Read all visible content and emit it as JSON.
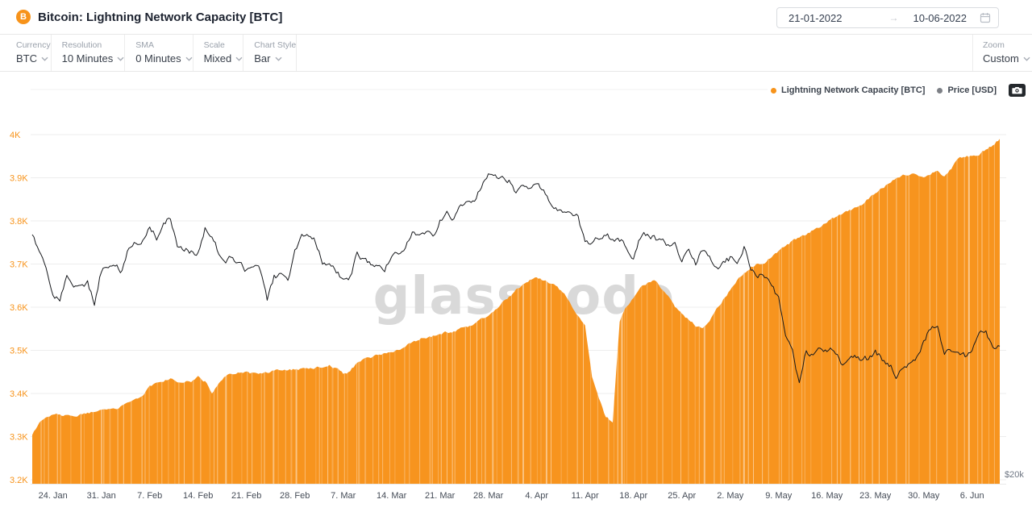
{
  "header": {
    "asset_icon_letter": "B",
    "title": "Bitcoin: Lightning Network Capacity [BTC]",
    "date_from": "21-01-2022",
    "date_to": "10-06-2022",
    "date_separator": "→"
  },
  "toolbar": {
    "cells": [
      {
        "label": "Currency",
        "value": "BTC"
      },
      {
        "label": "Resolution",
        "value": "10 Minutes"
      },
      {
        "label": "SMA",
        "value": "0 Minutes"
      },
      {
        "label": "Scale",
        "value": "Mixed"
      },
      {
        "label": "Chart Style",
        "value": "Bar"
      }
    ],
    "zoom": {
      "label": "Zoom",
      "value": "Custom"
    }
  },
  "legend": {
    "series": [
      {
        "label": "Lightning Network Capacity [BTC]",
        "color": "#f7931a"
      },
      {
        "label": "Price [USD]",
        "color": "#7d8086"
      }
    ]
  },
  "chart_data": {
    "type": "combo",
    "title": "Bitcoin: Lightning Network Capacity [BTC]",
    "start_date": "2022-01-21",
    "end_date": "2022-06-10",
    "x_tick_labels": [
      "24. Jan",
      "31. Jan",
      "7. Feb",
      "14. Feb",
      "21. Feb",
      "28. Feb",
      "7. Mar",
      "14. Mar",
      "21. Mar",
      "28. Mar",
      "4. Apr",
      "11. Apr",
      "18. Apr",
      "25. Apr",
      "2. May",
      "9. May",
      "16. May",
      "23. May",
      "30. May",
      "6. Jun"
    ],
    "x_tick_day_offsets": [
      3,
      10,
      17,
      24,
      31,
      38,
      45,
      52,
      59,
      66,
      73,
      80,
      87,
      94,
      101,
      108,
      115,
      122,
      129,
      136
    ],
    "left_axis": {
      "series": "Lightning Network Capacity [BTC]",
      "tick_labels": [
        "4K",
        "3.9K",
        "3.8K",
        "3.7K",
        "3.6K",
        "3.5K",
        "3.4K",
        "3.3K",
        "3.2K"
      ],
      "tick_values": [
        4000,
        3900,
        3800,
        3700,
        3600,
        3500,
        3400,
        3300,
        3200
      ],
      "color": "#f7931a"
    },
    "right_axis": {
      "series": "Price [USD]",
      "visible_tick_label": "$20k",
      "visible_tick_value": 20000,
      "min": 20000,
      "max": 51500,
      "color": "#6e7683"
    },
    "grid": "horizontal-only",
    "legend_position": "top-right",
    "watermark": "glassnode",
    "series": [
      {
        "name": "Lightning Network Capacity [BTC]",
        "type": "bar",
        "axis": "left",
        "color": "#f7941e",
        "values_daily": [
          3302,
          3332,
          3345,
          3350,
          3352,
          3348,
          3345,
          3350,
          3354,
          3356,
          3358,
          3362,
          3366,
          3370,
          3376,
          3384,
          3395,
          3415,
          3424,
          3430,
          3435,
          3430,
          3425,
          3428,
          3438,
          3428,
          3400,
          3424,
          3440,
          3444,
          3448,
          3450,
          3446,
          3448,
          3450,
          3452,
          3454,
          3452,
          3455,
          3456,
          3458,
          3460,
          3462,
          3465,
          3458,
          3444,
          3452,
          3470,
          3478,
          3484,
          3490,
          3493,
          3496,
          3502,
          3512,
          3520,
          3526,
          3530,
          3534,
          3538,
          3542,
          3546,
          3550,
          3556,
          3562,
          3570,
          3578,
          3592,
          3610,
          3625,
          3640,
          3652,
          3663,
          3668,
          3664,
          3655,
          3645,
          3628,
          3605,
          3582,
          3555,
          3440,
          3385,
          3345,
          3335,
          3568,
          3600,
          3622,
          3645,
          3655,
          3660,
          3645,
          3625,
          3600,
          3585,
          3570,
          3558,
          3550,
          3570,
          3594,
          3618,
          3640,
          3663,
          3680,
          3694,
          3700,
          3706,
          3718,
          3728,
          3740,
          3752,
          3760,
          3768,
          3778,
          3788,
          3800,
          3808,
          3814,
          3820,
          3830,
          3840,
          3852,
          3862,
          3875,
          3888,
          3898,
          3905,
          3910,
          3906,
          3900,
          3910,
          3916,
          3905,
          3922,
          3945,
          3950,
          3950,
          3956,
          3965,
          3976,
          3990
        ]
      },
      {
        "name": "Price [USD]",
        "type": "line",
        "axis": "right",
        "color": "#17191d",
        "values_daily": [
          42400,
          41000,
          39200,
          37000,
          36600,
          38400,
          37200,
          37700,
          38000,
          36000,
          39100,
          39500,
          39800,
          39100,
          41300,
          41700,
          41800,
          43300,
          42200,
          43500,
          43800,
          41300,
          40900,
          40900,
          40600,
          42800,
          42400,
          40600,
          40200,
          40200,
          39800,
          39100,
          39500,
          39100,
          36200,
          38400,
          38700,
          38000,
          40600,
          42400,
          42100,
          41700,
          39800,
          39500,
          39100,
          38000,
          38400,
          40600,
          40200,
          39800,
          39800,
          39100,
          40400,
          40700,
          41300,
          42600,
          42000,
          42600,
          42200,
          43500,
          44300,
          43900,
          45100,
          45300,
          45600,
          47000,
          47800,
          47700,
          47500,
          47200,
          46300,
          46900,
          46500,
          47000,
          46400,
          45000,
          44400,
          44400,
          44100,
          44000,
          41500,
          41300,
          42100,
          42200,
          42000,
          41900,
          41300,
          40000,
          42100,
          42400,
          42100,
          41700,
          41500,
          41600,
          39800,
          41300,
          39800,
          40900,
          40200,
          39500,
          39700,
          40200,
          40000,
          41300,
          39100,
          38700,
          38500,
          38000,
          36500,
          33500,
          31800,
          28700,
          31800,
          31300,
          31800,
          31900,
          31800,
          30600,
          31000,
          31300,
          30800,
          31100,
          31800,
          31000,
          30600,
          29600,
          30200,
          30400,
          31000,
          32400,
          33900,
          33900,
          31800,
          31500,
          31300,
          31300,
          31800,
          33500,
          33500,
          32100,
          32400
        ]
      }
    ]
  }
}
